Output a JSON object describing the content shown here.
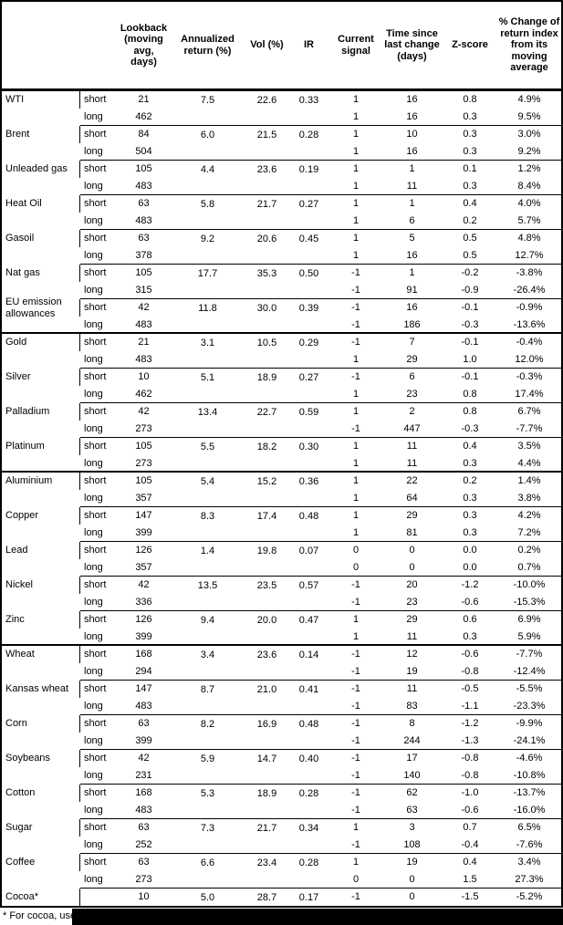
{
  "colors": {
    "text": "#000000",
    "background": "#ffffff",
    "line": "#000000",
    "redaction": "#000000"
  },
  "header": {
    "lookback": "Lookback (moving avg, days)",
    "annualized": "Annualized return (%)",
    "vol": "Vol (%)",
    "ir": "IR",
    "signal": "Current signal",
    "time": "Time since last change (days)",
    "zscore": "Z-score",
    "pct_change": "% Change of return index from its moving average"
  },
  "footnote": {
    "text": "* For cocoa, uses c"
  },
  "sections": [
    {
      "commodities": [
        {
          "name": "WTI",
          "annualized": "7.5",
          "vol": "22.6",
          "ir": "0.33",
          "rows": [
            {
              "horizon": "short",
              "lookback": "21",
              "signal": "1",
              "time": "16",
              "zscore": "0.8",
              "pct": "4.9%"
            },
            {
              "horizon": "long",
              "lookback": "462",
              "signal": "1",
              "time": "16",
              "zscore": "0.3",
              "pct": "9.5%"
            }
          ]
        },
        {
          "name": "Brent",
          "annualized": "6.0",
          "vol": "21.5",
          "ir": "0.28",
          "rows": [
            {
              "horizon": "short",
              "lookback": "84",
              "signal": "1",
              "time": "10",
              "zscore": "0.3",
              "pct": "3.0%"
            },
            {
              "horizon": "long",
              "lookback": "504",
              "signal": "1",
              "time": "16",
              "zscore": "0.3",
              "pct": "9.2%"
            }
          ]
        },
        {
          "name": "Unleaded gas",
          "annualized": "4.4",
          "vol": "23.6",
          "ir": "0.19",
          "rows": [
            {
              "horizon": "short",
              "lookback": "105",
              "signal": "1",
              "time": "1",
              "zscore": "0.1",
              "pct": "1.2%"
            },
            {
              "horizon": "long",
              "lookback": "483",
              "signal": "1",
              "time": "11",
              "zscore": "0.3",
              "pct": "8.4%"
            }
          ]
        },
        {
          "name": "Heat Oil",
          "annualized": "5.8",
          "vol": "21.7",
          "ir": "0.27",
          "rows": [
            {
              "horizon": "short",
              "lookback": "63",
              "signal": "1",
              "time": "1",
              "zscore": "0.4",
              "pct": "4.0%"
            },
            {
              "horizon": "long",
              "lookback": "483",
              "signal": "1",
              "time": "6",
              "zscore": "0.2",
              "pct": "5.7%"
            }
          ]
        },
        {
          "name": "Gasoil",
          "annualized": "9.2",
          "vol": "20.6",
          "ir": "0.45",
          "rows": [
            {
              "horizon": "short",
              "lookback": "63",
              "signal": "1",
              "time": "5",
              "zscore": "0.5",
              "pct": "4.8%"
            },
            {
              "horizon": "long",
              "lookback": "378",
              "signal": "1",
              "time": "16",
              "zscore": "0.5",
              "pct": "12.7%"
            }
          ]
        },
        {
          "name": "Nat gas",
          "annualized": "17.7",
          "vol": "35.3",
          "ir": "0.50",
          "rows": [
            {
              "horizon": "short",
              "lookback": "105",
              "signal": "-1",
              "time": "1",
              "zscore": "-0.2",
              "pct": "-3.8%"
            },
            {
              "horizon": "long",
              "lookback": "315",
              "signal": "-1",
              "time": "91",
              "zscore": "-0.9",
              "pct": "-26.4%"
            }
          ]
        },
        {
          "name": "EU emission allowances",
          "annualized": "11.8",
          "vol": "30.0",
          "ir": "0.39",
          "rows": [
            {
              "horizon": "short",
              "lookback": "42",
              "signal": "-1",
              "time": "16",
              "zscore": "-0.1",
              "pct": "-0.9%"
            },
            {
              "horizon": "long",
              "lookback": "483",
              "signal": "-1",
              "time": "186",
              "zscore": "-0.3",
              "pct": "-13.6%"
            }
          ]
        }
      ]
    },
    {
      "commodities": [
        {
          "name": "Gold",
          "annualized": "3.1",
          "vol": "10.5",
          "ir": "0.29",
          "rows": [
            {
              "horizon": "short",
              "lookback": "21",
              "signal": "-1",
              "time": "7",
              "zscore": "-0.1",
              "pct": "-0.4%"
            },
            {
              "horizon": "long",
              "lookback": "483",
              "signal": "1",
              "time": "29",
              "zscore": "1.0",
              "pct": "12.0%"
            }
          ]
        },
        {
          "name": "Silver",
          "annualized": "5.1",
          "vol": "18.9",
          "ir": "0.27",
          "rows": [
            {
              "horizon": "short",
              "lookback": "10",
              "signal": "-1",
              "time": "6",
              "zscore": "-0.1",
              "pct": "-0.3%"
            },
            {
              "horizon": "long",
              "lookback": "462",
              "signal": "1",
              "time": "23",
              "zscore": "0.8",
              "pct": "17.4%"
            }
          ]
        },
        {
          "name": "Palladium",
          "annualized": "13.4",
          "vol": "22.7",
          "ir": "0.59",
          "rows": [
            {
              "horizon": "short",
              "lookback": "42",
              "signal": "1",
              "time": "2",
              "zscore": "0.8",
              "pct": "6.7%"
            },
            {
              "horizon": "long",
              "lookback": "273",
              "signal": "-1",
              "time": "447",
              "zscore": "-0.3",
              "pct": "-7.7%"
            }
          ]
        },
        {
          "name": "Platinum",
          "annualized": "5.5",
          "vol": "18.2",
          "ir": "0.30",
          "rows": [
            {
              "horizon": "short",
              "lookback": "105",
              "signal": "1",
              "time": "11",
              "zscore": "0.4",
              "pct": "3.5%"
            },
            {
              "horizon": "long",
              "lookback": "273",
              "signal": "1",
              "time": "11",
              "zscore": "0.3",
              "pct": "4.4%"
            }
          ]
        }
      ]
    },
    {
      "commodities": [
        {
          "name": "Aluminium",
          "annualized": "5.4",
          "vol": "15.2",
          "ir": "0.36",
          "rows": [
            {
              "horizon": "short",
              "lookback": "105",
              "signal": "1",
              "time": "22",
              "zscore": "0.2",
              "pct": "1.4%"
            },
            {
              "horizon": "long",
              "lookback": "357",
              "signal": "1",
              "time": "64",
              "zscore": "0.3",
              "pct": "3.8%"
            }
          ]
        },
        {
          "name": "Copper",
          "annualized": "8.3",
          "vol": "17.4",
          "ir": "0.48",
          "rows": [
            {
              "horizon": "short",
              "lookback": "147",
              "signal": "1",
              "time": "29",
              "zscore": "0.3",
              "pct": "4.2%"
            },
            {
              "horizon": "long",
              "lookback": "399",
              "signal": "1",
              "time": "81",
              "zscore": "0.3",
              "pct": "7.2%"
            }
          ]
        },
        {
          "name": "Lead",
          "annualized": "1.4",
          "vol": "19.8",
          "ir": "0.07",
          "rows": [
            {
              "horizon": "short",
              "lookback": "126",
              "signal": "0",
              "time": "0",
              "zscore": "0.0",
              "pct": "0.2%"
            },
            {
              "horizon": "long",
              "lookback": "357",
              "signal": "0",
              "time": "0",
              "zscore": "0.0",
              "pct": "0.7%"
            }
          ]
        },
        {
          "name": "Nickel",
          "annualized": "13.5",
          "vol": "23.5",
          "ir": "0.57",
          "rows": [
            {
              "horizon": "short",
              "lookback": "42",
              "signal": "-1",
              "time": "20",
              "zscore": "-1.2",
              "pct": "-10.0%"
            },
            {
              "horizon": "long",
              "lookback": "336",
              "signal": "-1",
              "time": "23",
              "zscore": "-0.6",
              "pct": "-15.3%"
            }
          ]
        },
        {
          "name": "Zinc",
          "annualized": "9.4",
          "vol": "20.0",
          "ir": "0.47",
          "rows": [
            {
              "horizon": "short",
              "lookback": "126",
              "signal": "1",
              "time": "29",
              "zscore": "0.6",
              "pct": "6.9%"
            },
            {
              "horizon": "long",
              "lookback": "399",
              "signal": "1",
              "time": "11",
              "zscore": "0.3",
              "pct": "5.9%"
            }
          ]
        }
      ]
    },
    {
      "commodities": [
        {
          "name": "Wheat",
          "annualized": "3.4",
          "vol": "23.6",
          "ir": "0.14",
          "rows": [
            {
              "horizon": "short",
              "lookback": "168",
              "signal": "-1",
              "time": "12",
              "zscore": "-0.6",
              "pct": "-7.7%"
            },
            {
              "horizon": "long",
              "lookback": "294",
              "signal": "-1",
              "time": "19",
              "zscore": "-0.8",
              "pct": "-12.4%"
            }
          ]
        },
        {
          "name": "Kansas wheat",
          "annualized": "8.7",
          "vol": "21.0",
          "ir": "0.41",
          "rows": [
            {
              "horizon": "short",
              "lookback": "147",
              "signal": "-1",
              "time": "11",
              "zscore": "-0.5",
              "pct": "-5.5%"
            },
            {
              "horizon": "long",
              "lookback": "483",
              "signal": "-1",
              "time": "83",
              "zscore": "-1.1",
              "pct": "-23.3%"
            }
          ]
        },
        {
          "name": "Corn",
          "annualized": "8.2",
          "vol": "16.9",
          "ir": "0.48",
          "rows": [
            {
              "horizon": "short",
              "lookback": "63",
              "signal": "-1",
              "time": "8",
              "zscore": "-1.2",
              "pct": "-9.9%"
            },
            {
              "horizon": "long",
              "lookback": "399",
              "signal": "-1",
              "time": "244",
              "zscore": "-1.3",
              "pct": "-24.1%"
            }
          ]
        },
        {
          "name": "Soybeans",
          "annualized": "5.9",
          "vol": "14.7",
          "ir": "0.40",
          "rows": [
            {
              "horizon": "short",
              "lookback": "42",
              "signal": "-1",
              "time": "17",
              "zscore": "-0.8",
              "pct": "-4.6%"
            },
            {
              "horizon": "long",
              "lookback": "231",
              "signal": "-1",
              "time": "140",
              "zscore": "-0.8",
              "pct": "-10.8%"
            }
          ]
        },
        {
          "name": "Cotton",
          "annualized": "5.3",
          "vol": "18.9",
          "ir": "0.28",
          "rows": [
            {
              "horizon": "short",
              "lookback": "168",
              "signal": "-1",
              "time": "62",
              "zscore": "-1.0",
              "pct": "-13.7%"
            },
            {
              "horizon": "long",
              "lookback": "483",
              "signal": "-1",
              "time": "63",
              "zscore": "-0.6",
              "pct": "-16.0%"
            }
          ]
        },
        {
          "name": "Sugar",
          "annualized": "7.3",
          "vol": "21.7",
          "ir": "0.34",
          "rows": [
            {
              "horizon": "short",
              "lookback": "63",
              "signal": "1",
              "time": "3",
              "zscore": "0.7",
              "pct": "6.5%"
            },
            {
              "horizon": "long",
              "lookback": "252",
              "signal": "-1",
              "time": "108",
              "zscore": "-0.4",
              "pct": "-7.6%"
            }
          ]
        },
        {
          "name": "Coffee",
          "annualized": "6.6",
          "vol": "23.4",
          "ir": "0.28",
          "rows": [
            {
              "horizon": "short",
              "lookback": "63",
              "signal": "1",
              "time": "19",
              "zscore": "0.4",
              "pct": "3.4%"
            },
            {
              "horizon": "long",
              "lookback": "273",
              "signal": "0",
              "time": "0",
              "zscore": "1.5",
              "pct": "27.3%"
            }
          ]
        },
        {
          "name": "Cocoa*",
          "annualized": "5.0",
          "vol": "28.7",
          "ir": "0.17",
          "rows": [
            {
              "horizon": "",
              "lookback": "10",
              "signal": "-1",
              "time": "0",
              "zscore": "-1.5",
              "pct": "-5.2%"
            }
          ]
        }
      ]
    }
  ]
}
